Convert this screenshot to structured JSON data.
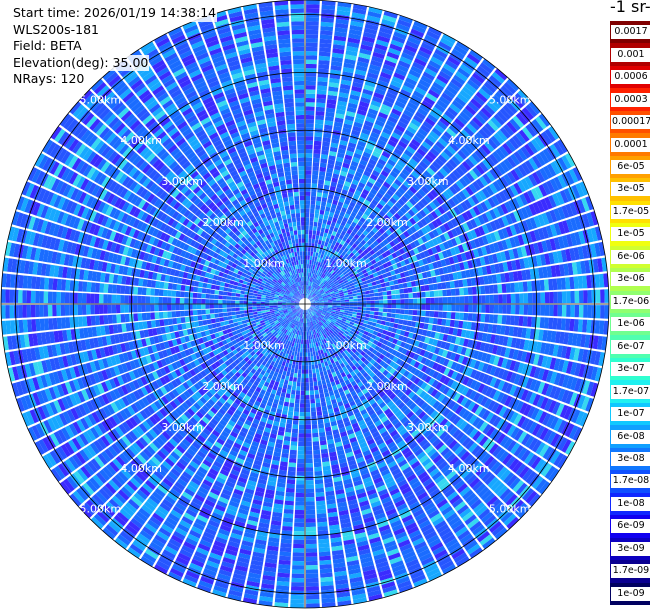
{
  "info": {
    "start_time": "Start time: 2026/01/19 14:38:14",
    "instrument": "WLS200s-181",
    "field": "Field: BETA",
    "elevation": "Elevation(deg): 35.00",
    "nrays": "NRays: 120"
  },
  "colorbar": {
    "title": "-1 sr-",
    "labels": [
      "0.0017",
      "0.001",
      "0.0006",
      "0.0003",
      "0.00017",
      "0.0001",
      "6e-05",
      "3e-05",
      "1.7e-05",
      "1e-05",
      "6e-06",
      "3e-06",
      "1.7e-06",
      "1e-06",
      "6e-07",
      "3e-07",
      "1.7e-07",
      "1e-07",
      "6e-08",
      "3e-08",
      "1.7e-08",
      "1e-08",
      "6e-09",
      "3e-09",
      "1.7e-09",
      "1e-09"
    ],
    "colors": [
      "#800000",
      "#b00000",
      "#e00000",
      "#ff2000",
      "#ff5000",
      "#ff7a00",
      "#ffa000",
      "#ffc000",
      "#ffe000",
      "#f0ff10",
      "#d0ff30",
      "#b0ff50",
      "#90ff70",
      "#70ff90",
      "#50ffb0",
      "#30ffd0",
      "#20f0f0",
      "#10c8ff",
      "#10a0ff",
      "#1078ff",
      "#1050ff",
      "#1028ff",
      "#1000f0",
      "#0c00c0",
      "#0a0090",
      "#000060"
    ]
  },
  "chart_data": {
    "type": "heatmap",
    "projection": "polar PPI (plan position indicator)",
    "field": "BETA",
    "elevation_deg": 35.0,
    "n_rays": 120,
    "range_rings_km": [
      1,
      2,
      3,
      4,
      5
    ],
    "max_range_km": 5.25,
    "ring_labels": [
      "1.00km",
      "2.00km",
      "3.00km",
      "4.00km",
      "5.00km"
    ],
    "value_range": [
      1e-09,
      0.0017
    ],
    "scale": "log",
    "dominant_values": [
      "1e-08",
      "3e-08",
      "6e-08"
    ],
    "description_of_field": "mostly 1e-08 to 6e-08 everywhere, with occasional cyan cells near 1e-07"
  }
}
